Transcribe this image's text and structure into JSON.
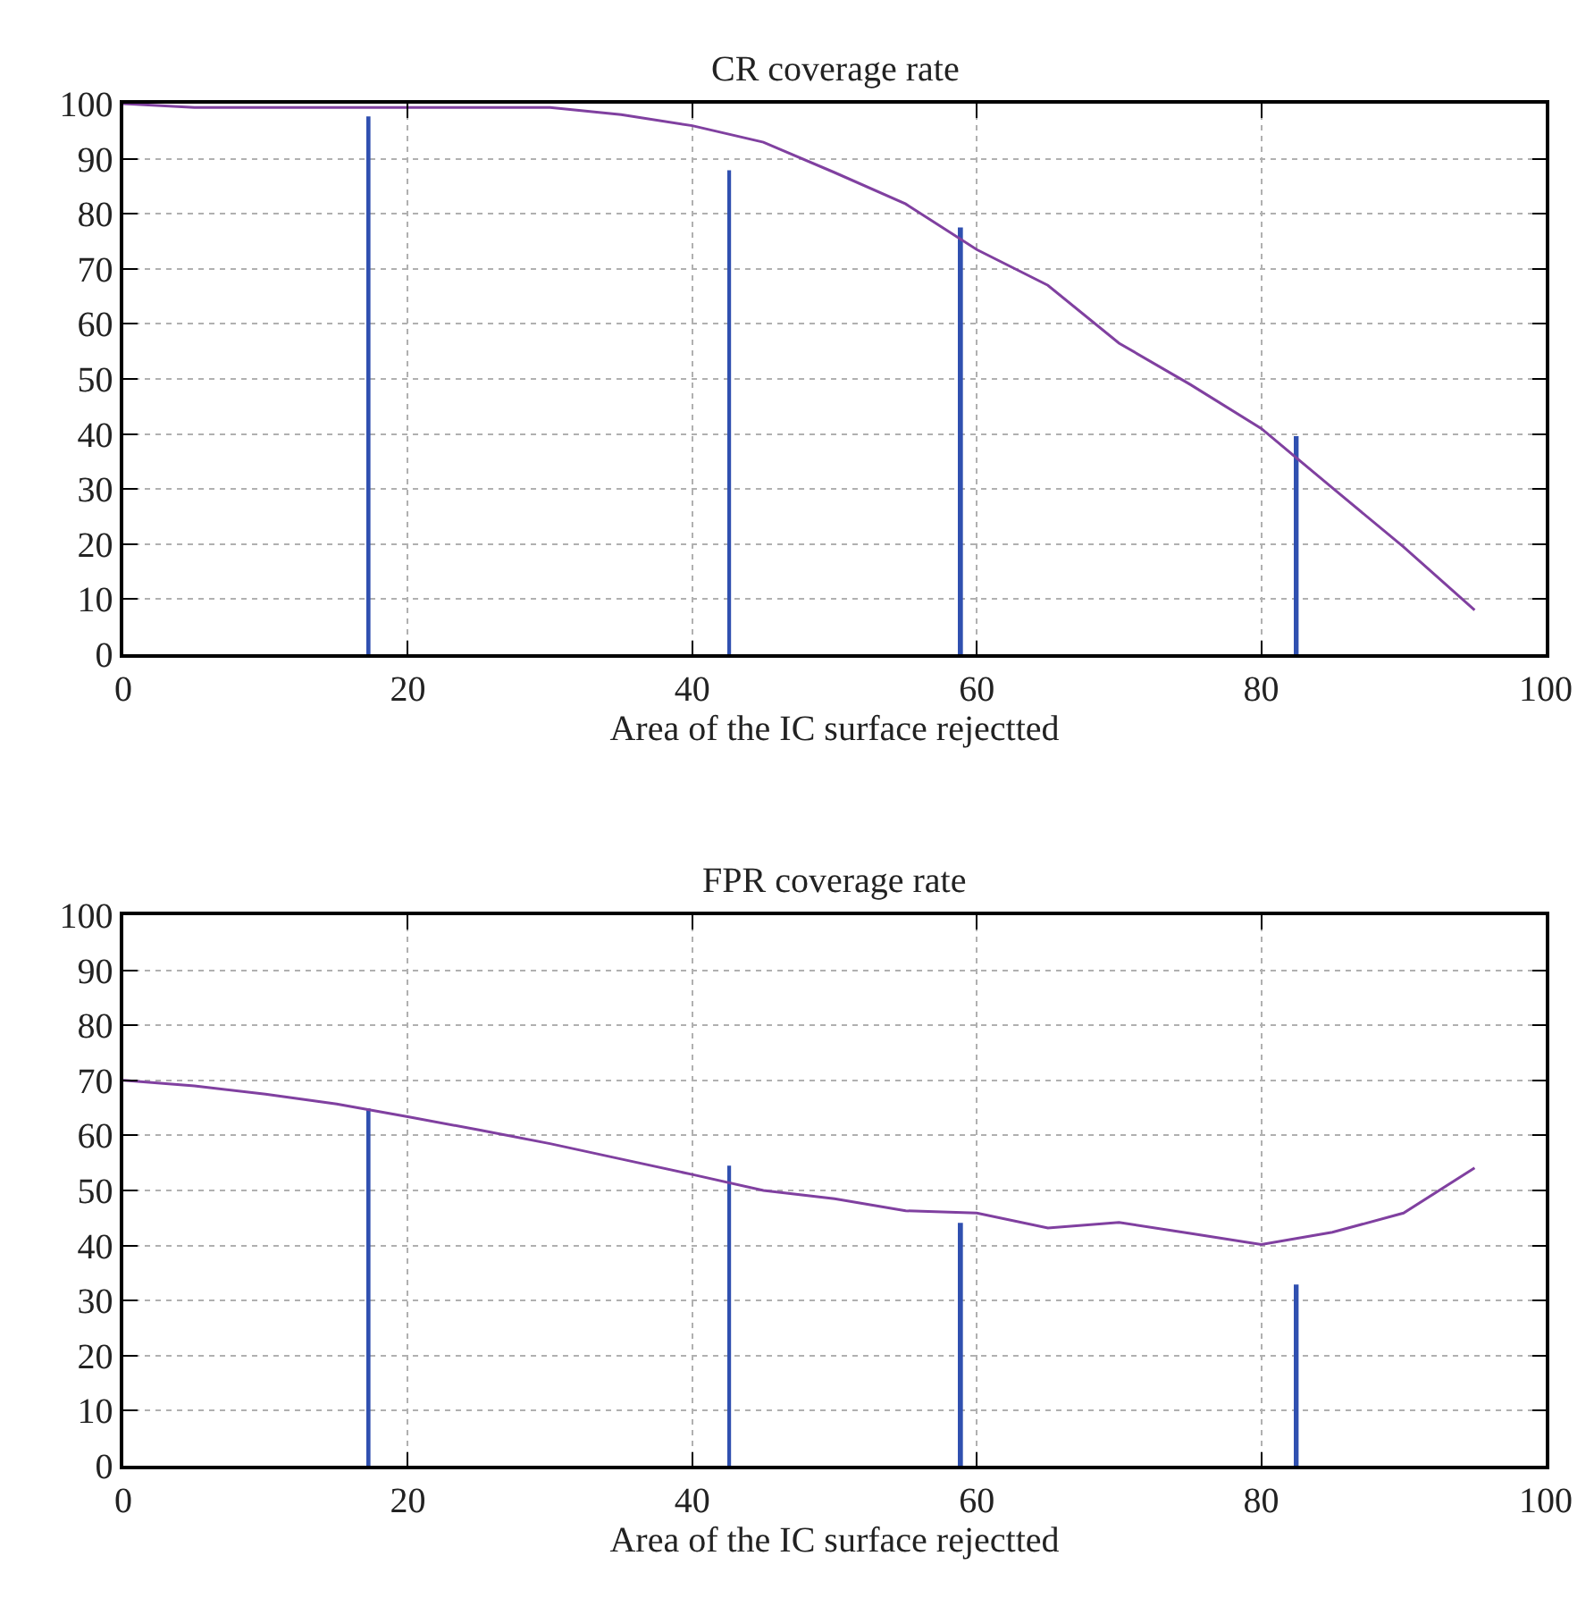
{
  "chart_data": [
    {
      "type": "line",
      "title": "CR coverage rate",
      "xlabel": "Area of the IC surface rejectted",
      "xlim": [
        0,
        100
      ],
      "xticks": [
        0,
        20,
        40,
        60,
        80,
        100
      ],
      "ylim": [
        0,
        100
      ],
      "yticks": [
        0,
        10,
        20,
        30,
        40,
        50,
        60,
        70,
        80,
        90,
        100
      ],
      "grid": true,
      "series": [
        {
          "color": "#8040a0",
          "x": [
            0,
            5,
            10,
            15,
            20,
            25,
            30,
            35,
            40,
            45,
            50,
            55,
            60,
            65,
            70,
            75,
            80,
            85,
            90,
            95
          ],
          "values": [
            100,
            99.3,
            99.3,
            99.3,
            99.3,
            99.3,
            99.3,
            98,
            96,
            93,
            87.5,
            81.8,
            73.5,
            67,
            56.5,
            49,
            41,
            30.2,
            19.5,
            8
          ]
        },
        {
          "type": "bar",
          "color": "#3050b0",
          "x": [
            17.25,
            42.6,
            58.9,
            82.5
          ],
          "values": [
            97.7,
            87.9,
            77.5,
            39.6
          ]
        }
      ]
    },
    {
      "type": "line",
      "title": "FPR coverage rate",
      "xlabel": "Area of the IC surface rejectted",
      "xlim": [
        0,
        100
      ],
      "xticks": [
        0,
        20,
        40,
        60,
        80,
        100
      ],
      "ylim": [
        0,
        100
      ],
      "yticks": [
        0,
        10,
        20,
        30,
        40,
        50,
        60,
        70,
        80,
        90,
        100
      ],
      "grid": true,
      "series": [
        {
          "color": "#8040a0",
          "x": [
            0,
            5,
            10,
            15,
            20,
            25,
            30,
            35,
            40,
            45,
            50,
            55,
            60,
            65,
            70,
            75,
            80,
            85,
            90,
            95
          ],
          "values": [
            70,
            69,
            67.5,
            65.7,
            63.4,
            61,
            58.5,
            55.7,
            52.9,
            50,
            48.5,
            46.3,
            45.9,
            43.2,
            44.2,
            42.2,
            40.2,
            42.4,
            45.9,
            54.1
          ]
        },
        {
          "type": "bar",
          "color": "#3050b0",
          "x": [
            17.25,
            42.6,
            58.9,
            82.5
          ],
          "values": [
            64.9,
            54.5,
            44.1,
            32.9
          ]
        }
      ]
    }
  ]
}
